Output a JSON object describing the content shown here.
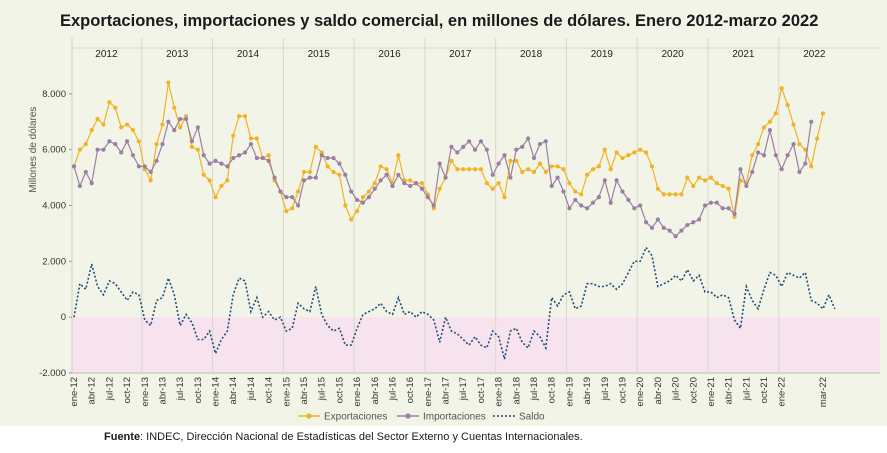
{
  "chart_data": {
    "type": "line",
    "title": "Exportaciones, importaciones y saldo comercial, en millones de dólares. Enero 2012-marzo 2022",
    "ylabel": "Millones de dólares",
    "ylim": [
      -2000,
      10000
    ],
    "yticks": [
      -2000,
      0,
      2000,
      4000,
      6000,
      8000
    ],
    "ytick_labels": [
      "-2.000",
      "0",
      "2.000",
      "4.000",
      "6.000",
      "8.000"
    ],
    "years": [
      "2012",
      "2013",
      "2014",
      "2015",
      "2016",
      "2017",
      "2018",
      "2019",
      "2020",
      "2021",
      "2022"
    ],
    "tick_labels": [
      "ene-12",
      "abr-12",
      "jul-12",
      "oct-12",
      "ene-13",
      "abr-13",
      "jul-13",
      "oct-13",
      "ene-14",
      "abr-14",
      "jul-14",
      "oct-14",
      "ene-15",
      "abr-15",
      "jul-15",
      "oct-15",
      "ene-16",
      "abr-16",
      "jul-16",
      "oct-16",
      "ene-17",
      "abr-17",
      "jul-17",
      "oct-17",
      "ene-18",
      "abr-18",
      "jul-18",
      "oct-18",
      "ene-19",
      "abr-19",
      "jul-19",
      "oct-19",
      "ene-20",
      "abr-20",
      "jul-20",
      "oct-20",
      "ene-21",
      "abr-21",
      "jul-21",
      "oct-21",
      "ene-22",
      "mar-22"
    ],
    "series": [
      {
        "name": "Exportaciones",
        "color": "#f0b323",
        "marker": "circle",
        "values": [
          5400,
          6000,
          6200,
          6700,
          7100,
          6900,
          7700,
          7500,
          6800,
          6900,
          6700,
          6300,
          5300,
          4900,
          6200,
          6900,
          8400,
          7500,
          6800,
          7200,
          6100,
          6000,
          5100,
          4900,
          4300,
          4700,
          4900,
          6500,
          7200,
          7200,
          6400,
          6400,
          5700,
          5800,
          4900,
          4500,
          3800,
          3900,
          4500,
          5200,
          5200,
          6100,
          5900,
          5400,
          5200,
          5100,
          4000,
          3500,
          3800,
          4300,
          4500,
          4800,
          5400,
          5300,
          4800,
          5800,
          4900,
          4900,
          4800,
          4800,
          4400,
          3900,
          4600,
          5000,
          5600,
          5300,
          5300,
          5300,
          5300,
          5300,
          4800,
          4600,
          4800,
          4300,
          5600,
          5600,
          5200,
          5300,
          5200,
          5500,
          5200,
          5400,
          5400,
          5300,
          4800,
          4500,
          4400,
          5100,
          5300,
          5400,
          6000,
          5300,
          5900,
          5700,
          5800,
          5900,
          6000,
          5900,
          5400,
          4600,
          4400,
          4400,
          4400,
          4400,
          5000,
          4700,
          5000,
          4900,
          5000,
          4800,
          4700,
          4600,
          3600,
          4900,
          4800,
          5800,
          6200,
          6800,
          7000,
          7300,
          8200,
          7600,
          6900,
          6200,
          6000,
          5400,
          6400,
          7300
        ]
      },
      {
        "name": "Importaciones",
        "color": "#9b7fa3",
        "marker": "circle",
        "values": [
          5400,
          4700,
          5200,
          4800,
          6000,
          6000,
          6300,
          6200,
          5900,
          6300,
          5800,
          5400,
          5400,
          5200,
          5600,
          6200,
          7000,
          6700,
          7100,
          7100,
          6300,
          6800,
          5800,
          5500,
          5600,
          5500,
          5400,
          5700,
          5800,
          5900,
          6200,
          5700,
          5700,
          5600,
          5000,
          4500,
          4300,
          4300,
          4000,
          4900,
          5000,
          5000,
          5800,
          5700,
          5700,
          5500,
          5100,
          4500,
          4200,
          4100,
          4300,
          4600,
          4900,
          5100,
          4700,
          5100,
          4800,
          4700,
          4800,
          4600,
          4300,
          4000,
          5500,
          5000,
          6100,
          5900,
          6100,
          6300,
          6000,
          6300,
          6000,
          5100,
          5500,
          5800,
          5000,
          6000,
          6100,
          6400,
          5700,
          6200,
          6300,
          4700,
          5000,
          4500,
          3900,
          4200,
          4000,
          3900,
          4100,
          4300,
          4900,
          4100,
          4900,
          4500,
          4200,
          3900,
          4000,
          3400,
          3200,
          3500,
          3200,
          3100,
          2900,
          3100,
          3300,
          3400,
          3500,
          4000,
          4100,
          4100,
          3900,
          3900,
          3700,
          5300,
          4700,
          5200,
          5900,
          5800,
          6700,
          5800,
          5300,
          5800,
          6200,
          5200,
          5500,
          7000
        ]
      },
      {
        "name": "Saldo",
        "color": "#1f4e79",
        "dash": "2 2",
        "values": [
          0,
          1200,
          1000,
          1900,
          1100,
          800,
          1300,
          1200,
          900,
          600,
          900,
          800,
          -100,
          -300,
          600,
          700,
          1400,
          800,
          -300,
          100,
          -200,
          -800,
          -800,
          -500,
          -1300,
          -800,
          -500,
          800,
          1400,
          1300,
          200,
          700,
          0,
          200,
          -100,
          0,
          -500,
          -400,
          500,
          300,
          200,
          1100,
          100,
          -300,
          -500,
          -400,
          -1000,
          -1000,
          -400,
          100,
          200,
          300,
          500,
          200,
          100,
          700,
          100,
          200,
          0,
          200,
          100,
          -100,
          -900,
          0,
          -500,
          -600,
          -800,
          -1000,
          -700,
          -1000,
          -1100,
          -500,
          -700,
          -1500,
          -500,
          -400,
          -900,
          -1100,
          -500,
          -700,
          -1100,
          700,
          400,
          800,
          900,
          300,
          400,
          1200,
          1200,
          1100,
          1100,
          1200,
          1000,
          1200,
          1600,
          2000,
          2000,
          2500,
          2200,
          1100,
          1200,
          1300,
          1500,
          1300,
          1700,
          1300,
          1500,
          900,
          900,
          700,
          800,
          700,
          -100,
          -400,
          1100,
          600,
          300,
          1000,
          1600,
          1500,
          1100,
          1600,
          1500,
          1400,
          1600,
          600,
          500,
          300,
          800,
          300
        ]
      }
    ],
    "legend": {
      "position": "bottom"
    },
    "negative_band_color": "#f7e3ed",
    "grid": "vertical year separators"
  },
  "source": {
    "label": "Fuente",
    "text": ": INDEC, Dirección Nacional de Estadísticas del Sector Externo y Cuentas Internacionales."
  }
}
